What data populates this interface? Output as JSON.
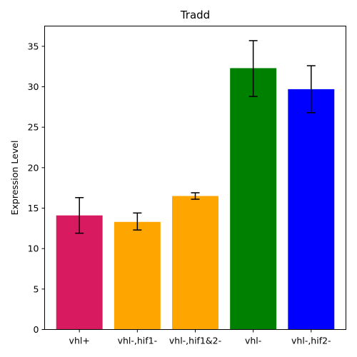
{
  "chart_data": {
    "type": "bar",
    "title": "Tradd",
    "xlabel": "",
    "ylabel": "Expression Level",
    "ylim": [
      0,
      37.5
    ],
    "yticks": [
      0,
      5,
      10,
      15,
      20,
      25,
      30,
      35
    ],
    "categories": [
      "vhl+",
      "vhl-,hif1-",
      "vhl-,hif1&2-",
      "vhl-",
      "vhl-,hif2-"
    ],
    "values": [
      14.1,
      13.3,
      16.5,
      32.3,
      29.7
    ],
    "error_low": [
      11.9,
      12.3,
      16.1,
      28.8,
      26.8
    ],
    "error_high": [
      16.3,
      14.4,
      16.9,
      35.7,
      32.6
    ],
    "colors": [
      "#d81b60",
      "#ffa500",
      "#ffa500",
      "#008000",
      "#0000ff"
    ],
    "grid": false,
    "legend": "none"
  }
}
